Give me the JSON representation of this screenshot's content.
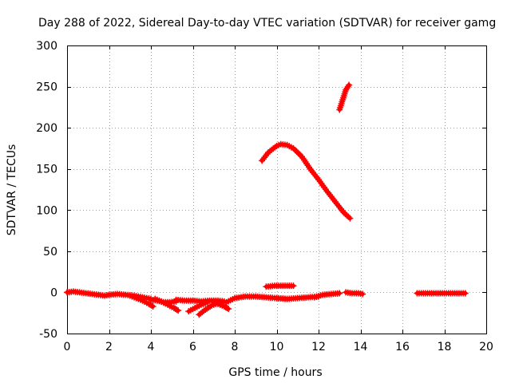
{
  "chart_data": {
    "type": "scatter",
    "title": "Day 288 of 2022, Sidereal Day-to-day VTEC variation (SDTVAR) for receiver gamg",
    "xlabel": "GPS time / hours",
    "ylabel": "SDTVAR / TECUs",
    "xlim": [
      0,
      20
    ],
    "ylim": [
      -50,
      300
    ],
    "xticks": [
      0,
      2,
      4,
      6,
      8,
      10,
      12,
      14,
      16,
      18,
      20
    ],
    "yticks": [
      -50,
      0,
      50,
      100,
      150,
      200,
      250,
      300
    ],
    "grid": true,
    "marker": "+",
    "color": "#ff0000",
    "series": [
      {
        "name": "arc-near-zero-0-to-2",
        "x": [
          0.0,
          0.3,
          0.6,
          0.9,
          1.2,
          1.5,
          1.8,
          2.0
        ],
        "y": [
          0,
          1,
          0,
          -1,
          -2,
          -3,
          -4,
          -3
        ]
      },
      {
        "name": "arc-near-zero-2-to-4",
        "x": [
          2.0,
          2.4,
          2.8,
          3.2,
          3.6,
          4.0
        ],
        "y": [
          -3,
          -2,
          -3,
          -4,
          -6,
          -8
        ]
      },
      {
        "name": "arc-dip-3-to-4",
        "x": [
          3.0,
          3.3,
          3.6,
          3.9,
          4.1
        ],
        "y": [
          -4,
          -7,
          -10,
          -14,
          -17
        ]
      },
      {
        "name": "arc-4-to-5",
        "x": [
          4.0,
          4.3,
          4.6,
          4.9,
          5.2
        ],
        "y": [
          -9,
          -10,
          -12,
          -12,
          -11
        ]
      },
      {
        "name": "arc-dip-4-to-5",
        "x": [
          4.2,
          4.5,
          4.8,
          5.1,
          5.3
        ],
        "y": [
          -8,
          -11,
          -15,
          -19,
          -22
        ]
      },
      {
        "name": "arc-5-to-7",
        "x": [
          5.2,
          5.6,
          6.0,
          6.4,
          6.8,
          7.2,
          7.5
        ],
        "y": [
          -9,
          -10,
          -10,
          -11,
          -10,
          -10,
          -11
        ]
      },
      {
        "name": "arc-dip-6",
        "x": [
          5.8,
          6.1,
          6.4,
          6.7
        ],
        "y": [
          -23,
          -19,
          -15,
          -12
        ]
      },
      {
        "name": "arc-dip-6-to-7",
        "x": [
          6.3,
          6.6,
          6.9,
          7.2,
          7.4
        ],
        "y": [
          -27,
          -21,
          -16,
          -13,
          -12
        ]
      },
      {
        "name": "arc-dip-7",
        "x": [
          7.0,
          7.2,
          7.5,
          7.7
        ],
        "y": [
          -12,
          -14,
          -17,
          -20
        ]
      },
      {
        "name": "arc-7-to-10",
        "x": [
          7.6,
          8.0,
          8.5,
          9.0,
          9.5,
          10.0,
          10.5
        ],
        "y": [
          -12,
          -7,
          -5,
          -5,
          -6,
          -7,
          -8
        ]
      },
      {
        "name": "arc-10-to-12",
        "x": [
          10.0,
          10.5,
          11.0,
          11.5,
          12.0
        ],
        "y": [
          -7,
          -8,
          -7,
          -6,
          -5
        ]
      },
      {
        "name": "arc-12-to-13",
        "x": [
          11.8,
          12.2,
          12.6,
          13.0
        ],
        "y": [
          -6,
          -3,
          -2,
          -1
        ]
      },
      {
        "name": "short-segment-9-to-11",
        "x": [
          9.5,
          9.9,
          10.3,
          10.7,
          10.8
        ],
        "y": [
          7,
          8,
          8,
          8,
          8
        ]
      },
      {
        "name": "segment-13-to-14",
        "x": [
          13.3,
          13.6,
          13.9,
          14.1
        ],
        "y": [
          0,
          -1,
          -1,
          -2
        ]
      },
      {
        "name": "segment-16-to-19",
        "x": [
          16.7,
          17.2,
          17.7,
          18.2,
          18.7,
          19.0
        ],
        "y": [
          -1,
          -1,
          -1,
          -1,
          -1,
          -1
        ]
      },
      {
        "name": "high-arc-9-to-14",
        "x": [
          9.3,
          9.6,
          10.0,
          10.2,
          10.5,
          10.8,
          11.2,
          11.6,
          12.0,
          12.4,
          12.8,
          13.2,
          13.5
        ],
        "y": [
          160,
          170,
          178,
          180,
          179,
          175,
          165,
          150,
          137,
          123,
          110,
          97,
          90
        ]
      },
      {
        "name": "steep-segment-13",
        "x": [
          13.0,
          13.15,
          13.3,
          13.45
        ],
        "y": [
          222,
          234,
          246,
          252
        ]
      }
    ]
  }
}
